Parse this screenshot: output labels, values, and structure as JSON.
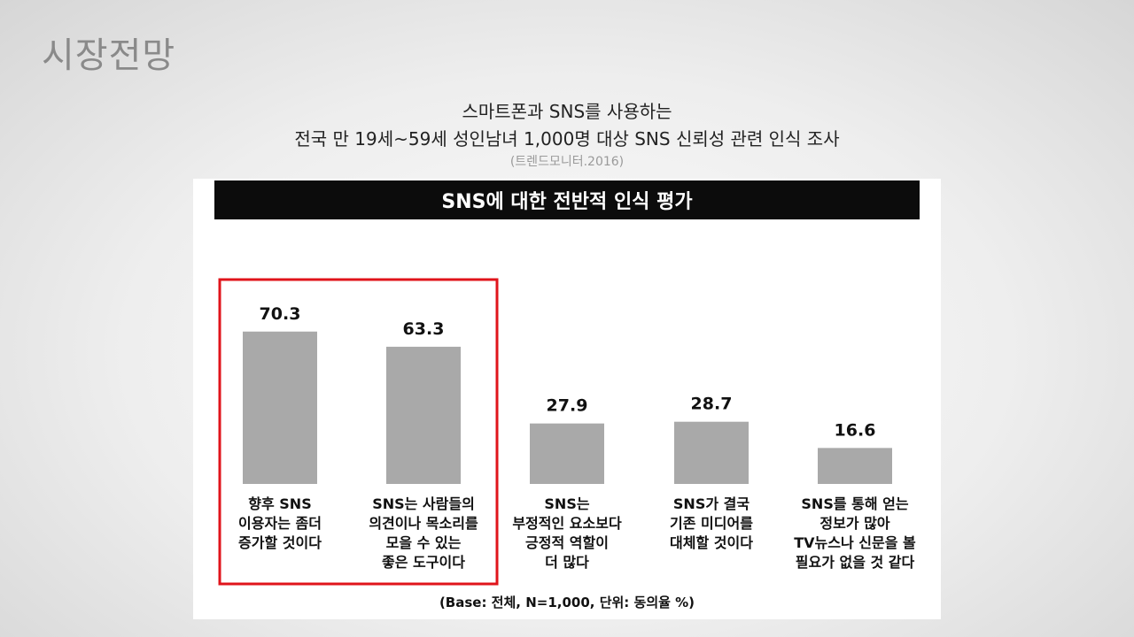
{
  "page_title": "시장전망",
  "subtitle_line1": "스마트폰과 SNS를 사용하는",
  "subtitle_line2": "전국 만 19세~59세 성인남녀 1,000명 대상 SNS 신뢰성 관련 인식 조사",
  "source_note": "(트렌드모니터.2016)",
  "chart_data": {
    "type": "bar",
    "title": "SNS에 대한 전반적 인식 평가",
    "categories": [
      [
        "향후 SNS",
        "이용자는 좀더",
        "증가할 것이다"
      ],
      [
        "SNS는 사람들의",
        "의견이나 목소리를",
        "모을 수 있는",
        "좋은 도구이다"
      ],
      [
        "SNS는",
        "부정적인 요소보다",
        "긍정적 역할이",
        "더 많다"
      ],
      [
        "SNS가 결국",
        "기존 미디어를",
        "대체할 것이다"
      ],
      [
        "SNS를 통해 얻는",
        "정보가 많아",
        "TV뉴스나 신문을 볼",
        "필요가 없을 것 같다"
      ]
    ],
    "values": [
      70.3,
      63.3,
      27.9,
      28.7,
      16.6
    ],
    "value_labels": [
      "70.3",
      "63.3",
      "27.9",
      "28.7",
      "16.6"
    ],
    "footnote": "(Base: 전체, N=1,000, 단위: 동의율 %)",
    "highlighted_categories": [
      0,
      1
    ],
    "bar_color": "#a9a9a9",
    "highlight_color": "#e0141b",
    "ylim": [
      0,
      100
    ],
    "grid": false
  }
}
